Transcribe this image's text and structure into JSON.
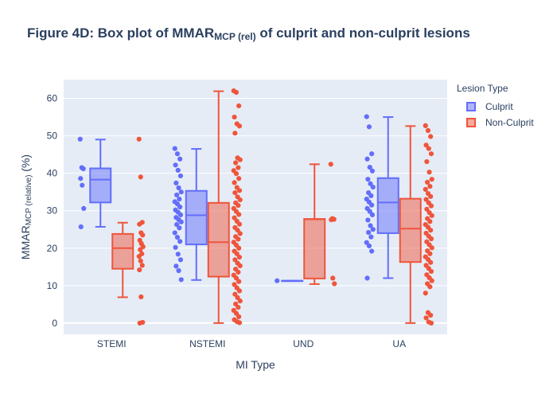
{
  "chart_data": {
    "type": "box",
    "title_main": "Figure 4D: Box plot of MMAR",
    "title_sub": "MCP (rel)",
    "title_rest": " of culprit and non-culprit lesions",
    "xlabel": "MI Type",
    "ylabel_main": "MMAR",
    "ylabel_sub": "MCP (relative)",
    "ylabel_rest": " (%)",
    "categories": [
      "STEMI",
      "NSTEMI",
      "UND",
      "UA"
    ],
    "ylim": [
      -3,
      65
    ],
    "yticks": [
      0,
      10,
      20,
      30,
      40,
      50,
      60
    ],
    "grid": true,
    "legend": {
      "title": "Lesion Type",
      "placement": "right"
    },
    "series": [
      {
        "name": "Culprit",
        "color": "#636efa",
        "boxes": [
          {
            "category": "STEMI",
            "min": 25.7,
            "q1": 32.2,
            "median": 38.3,
            "q3": 41.3,
            "max": 49.0,
            "points": [
              49.1,
              41.5,
              41.2,
              38.6,
              36.8,
              30.6,
              25.7
            ]
          },
          {
            "category": "NSTEMI",
            "min": 11.5,
            "q1": 21.0,
            "median": 28.8,
            "q3": 35.3,
            "max": 46.5,
            "points": [
              46.6,
              45.2,
              43.8,
              42.2,
              40.8,
              39.3,
              37.4,
              36.1,
              35.0,
              34.2,
              33.1,
              32.4,
              31.8,
              31.0,
              30.2,
              29.6,
              28.9,
              28.2,
              27.6,
              27.0,
              26.3,
              25.4,
              24.1,
              22.9,
              21.8,
              20.2,
              18.4,
              16.9,
              15.2,
              14.0,
              11.6
            ]
          },
          {
            "category": "UND",
            "min": 11.3,
            "q1": 11.3,
            "median": 11.3,
            "q3": 11.3,
            "max": 11.3,
            "points": [
              11.3
            ]
          },
          {
            "category": "UA",
            "min": 12.0,
            "q1": 24.0,
            "median": 32.2,
            "q3": 38.7,
            "max": 55.0,
            "points": [
              55.1,
              52.4,
              45.2,
              43.8,
              41.6,
              40.6,
              38.4,
              37.2,
              36.3,
              34.8,
              34.0,
              33.1,
              32.3,
              31.5,
              30.6,
              29.8,
              28.9,
              27.5,
              26.0,
              25.0,
              24.2,
              23.0,
              21.5,
              20.6,
              19.2,
              12.0
            ]
          }
        ]
      },
      {
        "name": "Non-Culprit",
        "color": "#ef553b",
        "boxes": [
          {
            "category": "STEMI",
            "min": 6.9,
            "q1": 14.5,
            "median": 20.0,
            "q3": 23.8,
            "max": 26.8,
            "points": [
              49.1,
              39.0,
              26.9,
              26.4,
              24.1,
              23.5,
              22.1,
              21.2,
              20.4,
              19.6,
              18.5,
              17.8,
              16.6,
              15.4,
              14.2,
              7.0,
              0.2,
              0.0
            ]
          },
          {
            "category": "NSTEMI",
            "min": 0.0,
            "q1": 12.4,
            "median": 21.6,
            "q3": 32.1,
            "max": 61.9,
            "points": [
              62.0,
              61.6,
              58.0,
              55.0,
              53.2,
              52.6,
              50.7,
              44.1,
              43.6,
              42.8,
              41.5,
              40.7,
              39.9,
              38.6,
              37.5,
              36.2,
              35.4,
              34.8,
              33.7,
              32.9,
              32.1,
              31.4,
              30.6,
              29.8,
              29.0,
              28.1,
              27.2,
              26.4,
              25.5,
              24.8,
              23.9,
              23.1,
              22.4,
              21.6,
              20.8,
              20.0,
              19.2,
              18.5,
              17.6,
              16.9,
              16.0,
              15.3,
              14.4,
              13.6,
              12.8,
              12.0,
              11.1,
              10.3,
              9.4,
              8.6,
              7.7,
              6.8,
              5.9,
              5.1,
              4.2,
              3.4,
              2.6,
              1.7,
              0.9,
              0.4,
              0.1
            ]
          },
          {
            "category": "UND",
            "min": 10.4,
            "q1": 11.9,
            "median": 27.7,
            "q3": 27.8,
            "max": 42.4,
            "points": [
              42.4,
              27.9,
              27.7,
              27.6,
              12.0,
              10.5
            ]
          },
          {
            "category": "UA",
            "min": 0.0,
            "q1": 16.3,
            "median": 25.2,
            "q3": 33.2,
            "max": 52.6,
            "points": [
              52.7,
              51.4,
              49.8,
              47.5,
              46.6,
              45.2,
              43.1,
              40.3,
              38.4,
              37.6,
              36.5,
              35.7,
              34.6,
              33.8,
              33.0,
              32.1,
              31.3,
              30.4,
              29.5,
              28.7,
              27.9,
              27.1,
              26.3,
              25.6,
              24.8,
              24.0,
              23.2,
              22.5,
              21.7,
              20.9,
              20.1,
              19.3,
              18.5,
              17.7,
              17.0,
              16.2,
              15.4,
              14.6,
              13.8,
              12.9,
              12.1,
              11.3,
              10.5,
              9.7,
              8.0,
              2.8,
              2.1,
              1.4,
              0.3,
              0.0
            ]
          }
        ]
      }
    ]
  }
}
